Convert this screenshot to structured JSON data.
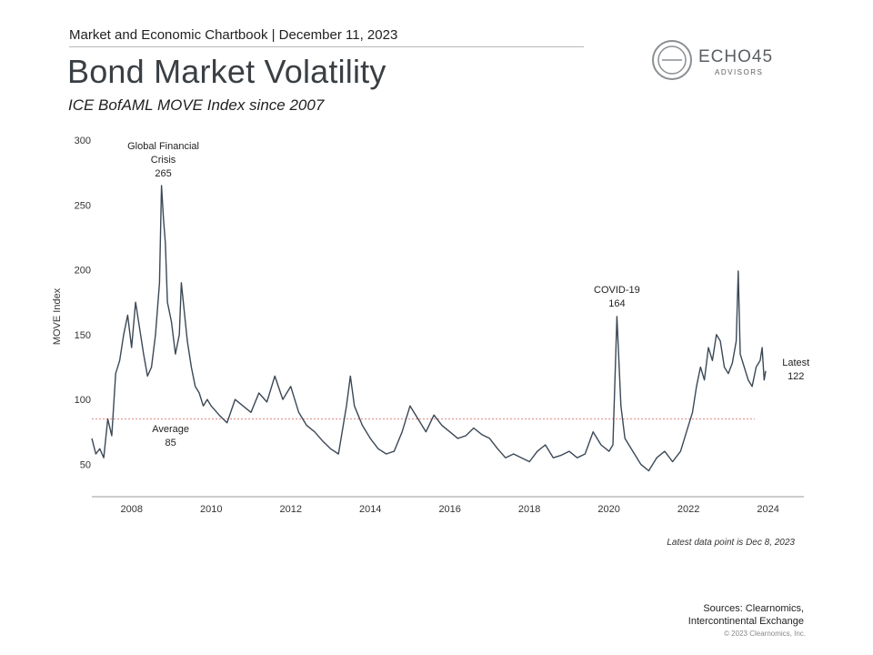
{
  "header": {
    "kicker": "Market and Economic Chartbook | December 11, 2023",
    "title": "Bond Market Volatility",
    "subtitle": "ICE BofAML MOVE Index since 2007"
  },
  "logo": {
    "name": "ECHO45",
    "tagline": "ADVISORS"
  },
  "colors": {
    "line": "#3b4856",
    "average": "#e08a8a",
    "axis": "#999999",
    "text": "#333333"
  },
  "chart_data": {
    "type": "line",
    "title": "",
    "xlabel": "",
    "ylabel": "MOVE Index",
    "xlim": [
      2007.0,
      2024.9
    ],
    "ylim": [
      25,
      300
    ],
    "xticks": [
      2008,
      2010,
      2012,
      2014,
      2016,
      2018,
      2020,
      2022,
      2024
    ],
    "xtick_labels": [
      "2008",
      "2010",
      "2012",
      "2014",
      "2016",
      "2018",
      "2020",
      "2022",
      "2024"
    ],
    "yticks": [
      50,
      100,
      150,
      200,
      250,
      300
    ],
    "ytick_labels": [
      "50",
      "100",
      "150",
      "200",
      "250",
      "300"
    ],
    "grid": false,
    "average": 85,
    "series": [
      {
        "name": "",
        "x": [
          2007.0,
          2007.1,
          2007.2,
          2007.3,
          2007.4,
          2007.5,
          2007.6,
          2007.7,
          2007.8,
          2007.9,
          2008.0,
          2008.1,
          2008.2,
          2008.3,
          2008.4,
          2008.5,
          2008.6,
          2008.7,
          2008.75,
          2008.8,
          2008.85,
          2008.9,
          2009.0,
          2009.1,
          2009.2,
          2009.25,
          2009.3,
          2009.4,
          2009.5,
          2009.6,
          2009.7,
          2009.8,
          2009.9,
          2010.0,
          2010.2,
          2010.4,
          2010.6,
          2010.8,
          2011.0,
          2011.2,
          2011.4,
          2011.6,
          2011.8,
          2012.0,
          2012.2,
          2012.4,
          2012.6,
          2012.8,
          2013.0,
          2013.2,
          2013.4,
          2013.5,
          2013.6,
          2013.8,
          2014.0,
          2014.2,
          2014.4,
          2014.6,
          2014.8,
          2015.0,
          2015.2,
          2015.4,
          2015.6,
          2015.8,
          2016.0,
          2016.2,
          2016.4,
          2016.6,
          2016.8,
          2017.0,
          2017.2,
          2017.4,
          2017.6,
          2017.8,
          2018.0,
          2018.2,
          2018.4,
          2018.6,
          2018.8,
          2019.0,
          2019.2,
          2019.4,
          2019.6,
          2019.8,
          2020.0,
          2020.1,
          2020.2,
          2020.3,
          2020.4,
          2020.6,
          2020.8,
          2021.0,
          2021.2,
          2021.4,
          2021.6,
          2021.8,
          2022.0,
          2022.1,
          2022.2,
          2022.3,
          2022.4,
          2022.5,
          2022.6,
          2022.7,
          2022.8,
          2022.9,
          2023.0,
          2023.1,
          2023.2,
          2023.25,
          2023.3,
          2023.4,
          2023.5,
          2023.6,
          2023.7,
          2023.8,
          2023.85,
          2023.9,
          2023.94
        ],
        "values": [
          70,
          58,
          62,
          55,
          85,
          72,
          120,
          130,
          150,
          165,
          140,
          175,
          155,
          135,
          118,
          125,
          150,
          190,
          265,
          240,
          220,
          175,
          160,
          135,
          150,
          190,
          175,
          145,
          125,
          110,
          105,
          95,
          100,
          95,
          88,
          82,
          100,
          95,
          90,
          105,
          98,
          118,
          100,
          110,
          90,
          80,
          75,
          68,
          62,
          58,
          95,
          118,
          95,
          80,
          70,
          62,
          58,
          60,
          75,
          95,
          85,
          75,
          88,
          80,
          75,
          70,
          72,
          78,
          73,
          70,
          62,
          55,
          58,
          55,
          52,
          60,
          65,
          55,
          57,
          60,
          55,
          58,
          75,
          65,
          60,
          65,
          164,
          95,
          70,
          60,
          50,
          45,
          55,
          60,
          52,
          60,
          80,
          90,
          110,
          125,
          115,
          140,
          130,
          150,
          145,
          125,
          120,
          128,
          145,
          199,
          135,
          125,
          115,
          110,
          125,
          130,
          140,
          115,
          122
        ]
      }
    ],
    "annotations": [
      {
        "label_lines": [
          "Global Financial",
          "Crisis",
          "265"
        ],
        "x": 2008.75,
        "y": 265
      },
      {
        "label_lines": [
          "COVID-19",
          "164"
        ],
        "x": 2020.2,
        "y": 164
      },
      {
        "label_lines": [
          "Average",
          "85"
        ],
        "x": 2008.98,
        "y": 85
      },
      {
        "label_lines": [
          "Latest",
          "122"
        ],
        "x": 2024.7,
        "y": 122
      }
    ]
  },
  "footer": {
    "note": "Latest data point is Dec 8, 2023",
    "sources_line1": "Sources: Clearnomics,",
    "sources_line2": "Intercontinental Exchange",
    "copyright": "© 2023 Clearnomics, Inc."
  }
}
